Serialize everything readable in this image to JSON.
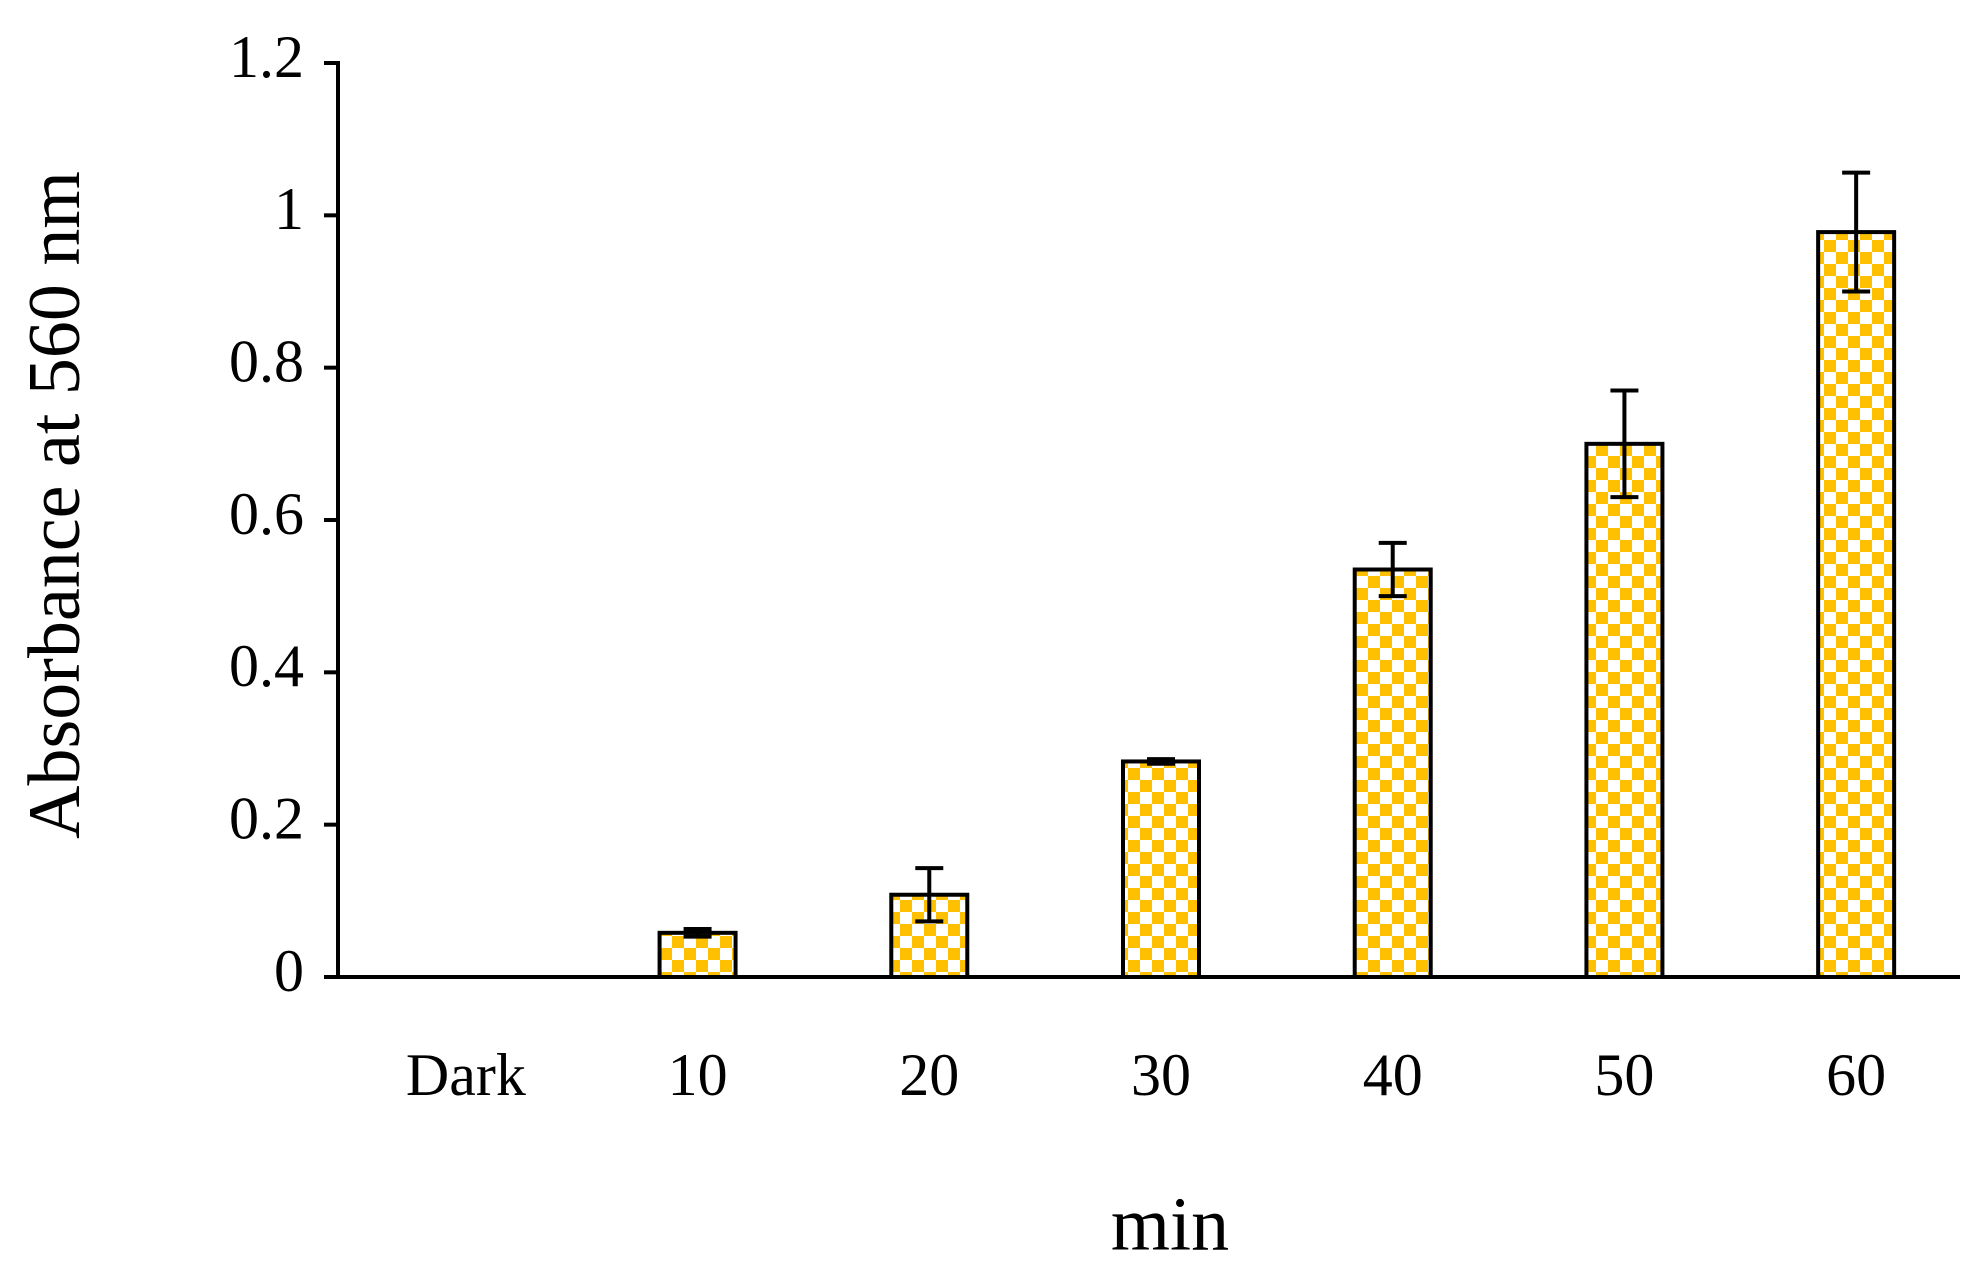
{
  "chart_data": {
    "type": "bar",
    "x_label": "min",
    "y_label": "Absorbance at 560 nm",
    "categories": [
      "Dark",
      "10",
      "20",
      "30",
      "40",
      "50",
      "60"
    ],
    "values": [
      0,
      0.058,
      0.108,
      0.283,
      0.535,
      0.7,
      0.978
    ],
    "errors": [
      0,
      0.005,
      0.035,
      0.003,
      0.035,
      0.07,
      0.078
    ],
    "color": "#ffc000",
    "ylim": [
      0,
      1.2
    ],
    "yticks": [
      0,
      0.2,
      0.4,
      0.6,
      0.8,
      1,
      1.2
    ],
    "grid": false
  }
}
